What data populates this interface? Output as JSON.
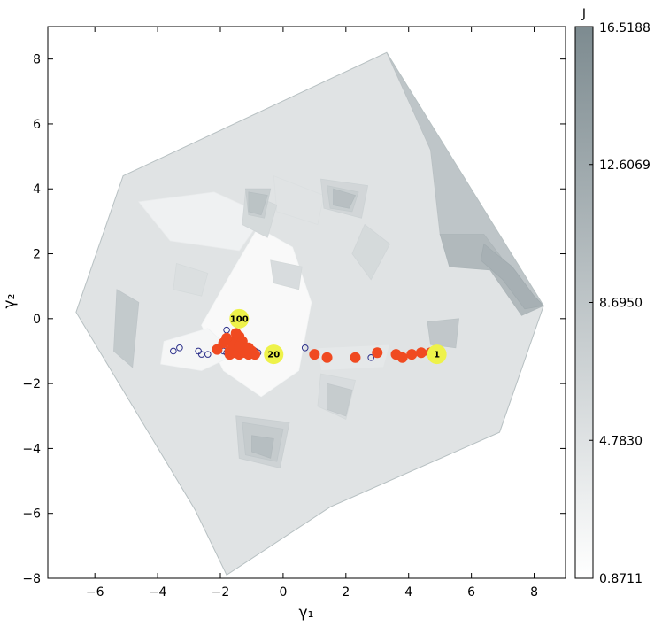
{
  "chart_data": {
    "type": "scatter",
    "title": "",
    "xlabel": "γ₁",
    "ylabel": "γ₂",
    "xlim": [
      -7.5,
      9.0
    ],
    "ylim": [
      -8.0,
      9.0
    ],
    "xticks": [
      -6,
      -4,
      -2,
      0,
      2,
      4,
      6,
      8
    ],
    "yticks": [
      -8,
      -6,
      -4,
      -2,
      0,
      2,
      4,
      6,
      8
    ],
    "grid": false,
    "colorbar": {
      "label": "J",
      "min": 0.8711,
      "max": 16.5188,
      "ticks": [
        "16.5188",
        "12.6069",
        "8.6950",
        "4.7830",
        "0.8711"
      ],
      "color_low": "#ffffff",
      "color_high": "#7d8b90"
    },
    "domain_polygon": [
      [
        -5.1,
        4.4
      ],
      [
        3.3,
        8.2
      ],
      [
        8.3,
        0.4
      ],
      [
        6.9,
        -3.5
      ],
      [
        1.5,
        -5.8
      ],
      [
        -1.8,
        -7.9
      ],
      [
        -2.8,
        -5.9
      ],
      [
        -6.6,
        0.2
      ]
    ],
    "contour_regions": [
      {
        "level": 0.05,
        "points": [
          [
            -1.6,
            1.5
          ],
          [
            -0.8,
            2.8
          ],
          [
            0.3,
            2.2
          ],
          [
            0.9,
            0.5
          ],
          [
            0.5,
            -1.6
          ],
          [
            -0.7,
            -2.4
          ],
          [
            -1.9,
            -1.6
          ],
          [
            -2.6,
            -0.2
          ]
        ]
      },
      {
        "level": 0.08,
        "points": [
          [
            -3.8,
            -0.7
          ],
          [
            -2.4,
            -0.3
          ],
          [
            -1.5,
            -1.1
          ],
          [
            -2.6,
            -1.6
          ],
          [
            -3.9,
            -1.4
          ]
        ]
      },
      {
        "level": 0.12,
        "points": [
          [
            -4.6,
            3.6
          ],
          [
            -2.2,
            3.9
          ],
          [
            -0.6,
            3.2
          ],
          [
            -1.4,
            2.1
          ],
          [
            -3.6,
            2.4
          ]
        ]
      },
      {
        "level": 0.2,
        "points": [
          [
            1.1,
            -0.9
          ],
          [
            3.4,
            -0.8
          ],
          [
            3.2,
            -1.5
          ],
          [
            1.2,
            -1.6
          ]
        ]
      },
      {
        "level": 0.24,
        "points": [
          [
            -0.3,
            4.4
          ],
          [
            1.3,
            3.8
          ],
          [
            1.1,
            2.9
          ],
          [
            -0.2,
            3.3
          ]
        ]
      },
      {
        "level": 0.28,
        "points": [
          [
            -3.4,
            1.7
          ],
          [
            -2.4,
            1.4
          ],
          [
            -2.6,
            0.7
          ],
          [
            -3.5,
            0.9
          ]
        ]
      },
      {
        "level": 0.3,
        "points": [
          [
            -0.4,
            1.8
          ],
          [
            0.6,
            1.6
          ],
          [
            0.5,
            0.9
          ],
          [
            -0.3,
            1.1
          ]
        ]
      },
      {
        "level": 0.32,
        "points": [
          [
            2.6,
            2.9
          ],
          [
            3.4,
            2.3
          ],
          [
            2.8,
            1.2
          ],
          [
            2.2,
            2.0
          ]
        ]
      },
      {
        "level": 0.3,
        "points": [
          [
            1.2,
            -1.7
          ],
          [
            2.3,
            -1.9
          ],
          [
            2.0,
            -3.1
          ],
          [
            1.1,
            -2.7
          ]
        ]
      },
      {
        "level": 0.32,
        "points": [
          [
            -1.2,
            3.9
          ],
          [
            -0.2,
            3.5
          ],
          [
            -0.5,
            2.5
          ],
          [
            -1.3,
            2.9
          ]
        ]
      },
      {
        "level": 0.35,
        "points": [
          [
            1.2,
            4.3
          ],
          [
            2.7,
            4.1
          ],
          [
            2.5,
            3.1
          ],
          [
            1.3,
            3.4
          ]
        ]
      },
      {
        "level": 0.38,
        "points": [
          [
            -1.5,
            -3.0
          ],
          [
            0.2,
            -3.2
          ],
          [
            -0.1,
            -4.6
          ],
          [
            -1.4,
            -4.3
          ]
        ]
      },
      {
        "level": 0.42,
        "points": [
          [
            -1.2,
            4.0
          ],
          [
            -0.4,
            4.0
          ],
          [
            -0.6,
            3.1
          ],
          [
            -1.1,
            3.2
          ]
        ]
      },
      {
        "level": 0.42,
        "points": [
          [
            1.4,
            4.1
          ],
          [
            2.4,
            3.9
          ],
          [
            2.2,
            3.3
          ],
          [
            1.5,
            3.4
          ]
        ]
      },
      {
        "level": 0.44,
        "points": [
          [
            1.4,
            -2.0
          ],
          [
            2.2,
            -2.2
          ],
          [
            2.0,
            -3.0
          ],
          [
            1.4,
            -2.8
          ]
        ]
      },
      {
        "level": 0.45,
        "points": [
          [
            -1.3,
            -3.2
          ],
          [
            0.0,
            -3.4
          ],
          [
            -0.2,
            -4.4
          ],
          [
            -1.2,
            -4.2
          ]
        ]
      },
      {
        "level": 0.46,
        "points": [
          [
            -5.3,
            0.9
          ],
          [
            -4.6,
            0.5
          ],
          [
            -4.8,
            -1.5
          ],
          [
            -5.4,
            -1.0
          ]
        ]
      },
      {
        "level": 0.48,
        "points": [
          [
            4.6,
            -0.1
          ],
          [
            5.6,
            0.0
          ],
          [
            5.5,
            -0.9
          ],
          [
            4.7,
            -0.8
          ]
        ]
      },
      {
        "level": 0.5,
        "points": [
          [
            3.3,
            8.2
          ],
          [
            4.7,
            5.2
          ],
          [
            5.0,
            2.6
          ],
          [
            6.4,
            2.6
          ],
          [
            7.8,
            0.8
          ],
          [
            8.3,
            0.4
          ],
          [
            8.0,
            4.6
          ]
        ]
      },
      {
        "level": 0.52,
        "points": [
          [
            -1.1,
            3.9
          ],
          [
            -0.5,
            3.8
          ],
          [
            -0.7,
            3.2
          ],
          [
            -1.1,
            3.3
          ]
        ]
      },
      {
        "level": 0.55,
        "points": [
          [
            1.6,
            4.0
          ],
          [
            2.3,
            3.8
          ],
          [
            2.1,
            3.4
          ],
          [
            1.6,
            3.5
          ]
        ]
      },
      {
        "level": 0.56,
        "points": [
          [
            -1.0,
            -3.6
          ],
          [
            -0.3,
            -3.7
          ],
          [
            -0.4,
            -4.3
          ],
          [
            -1.0,
            -4.1
          ]
        ]
      },
      {
        "level": 0.6,
        "points": [
          [
            5.0,
            2.6
          ],
          [
            6.4,
            2.6
          ],
          [
            7.8,
            0.8
          ],
          [
            8.3,
            0.4
          ],
          [
            7.6,
            0.1
          ],
          [
            6.6,
            1.5
          ],
          [
            5.3,
            1.6
          ]
        ]
      },
      {
        "level": 0.68,
        "points": [
          [
            6.4,
            2.3
          ],
          [
            7.3,
            1.6
          ],
          [
            8.0,
            0.7
          ],
          [
            8.3,
            0.4
          ],
          [
            7.7,
            0.3
          ],
          [
            7.0,
            1.2
          ],
          [
            6.3,
            1.8
          ]
        ]
      }
    ],
    "series": [
      {
        "name": "",
        "marker": "filled-circle",
        "color": "#f04a21",
        "x": [
          4.7,
          4.4,
          4.1,
          3.8,
          3.6,
          3.0,
          2.3,
          1.4,
          1.0,
          -0.9,
          -1.0,
          -1.1,
          -1.2,
          -1.3,
          -1.4,
          -1.5,
          -1.6,
          -1.7,
          -2.1,
          -1.9,
          -1.5,
          -1.4,
          -1.3,
          -1.6,
          -1.8,
          -1.2,
          -1.1,
          -1.4,
          -1.7,
          -1.5
        ],
        "y": [
          -1.05,
          -1.05,
          -1.1,
          -1.2,
          -1.1,
          -1.05,
          -1.2,
          -1.2,
          -1.1,
          -1.1,
          -1.0,
          -1.1,
          -1.05,
          -1.0,
          -1.1,
          -1.0,
          -1.05,
          -1.0,
          -0.95,
          -0.75,
          -0.65,
          -0.55,
          -0.7,
          -0.8,
          -0.6,
          -0.9,
          -0.9,
          -0.85,
          -1.1,
          -0.45
        ]
      },
      {
        "name": "",
        "marker": "open-circle",
        "color": "#2b2f8a",
        "x": [
          -3.5,
          -3.3,
          -2.7,
          -2.6,
          -2.4,
          -1.9,
          -1.8,
          -1.6,
          -1.5,
          -1.3,
          -1.1,
          -1.0,
          -0.9,
          -0.8,
          0.7,
          2.8,
          -1.8
        ],
        "y": [
          -1.0,
          -0.9,
          -1.0,
          -1.1,
          -1.1,
          -1.0,
          -1.05,
          -1.0,
          -0.95,
          -1.0,
          -0.85,
          -1.1,
          -1.0,
          -1.05,
          -0.9,
          -1.2,
          -0.35
        ]
      }
    ],
    "labeled_points": [
      {
        "label": "1",
        "x": 4.9,
        "y": -1.1
      },
      {
        "label": "20",
        "x": -0.3,
        "y": -1.1
      },
      {
        "label": "100",
        "x": -1.4,
        "y": 0.0
      }
    ],
    "highlight_color": "#eef24a"
  }
}
